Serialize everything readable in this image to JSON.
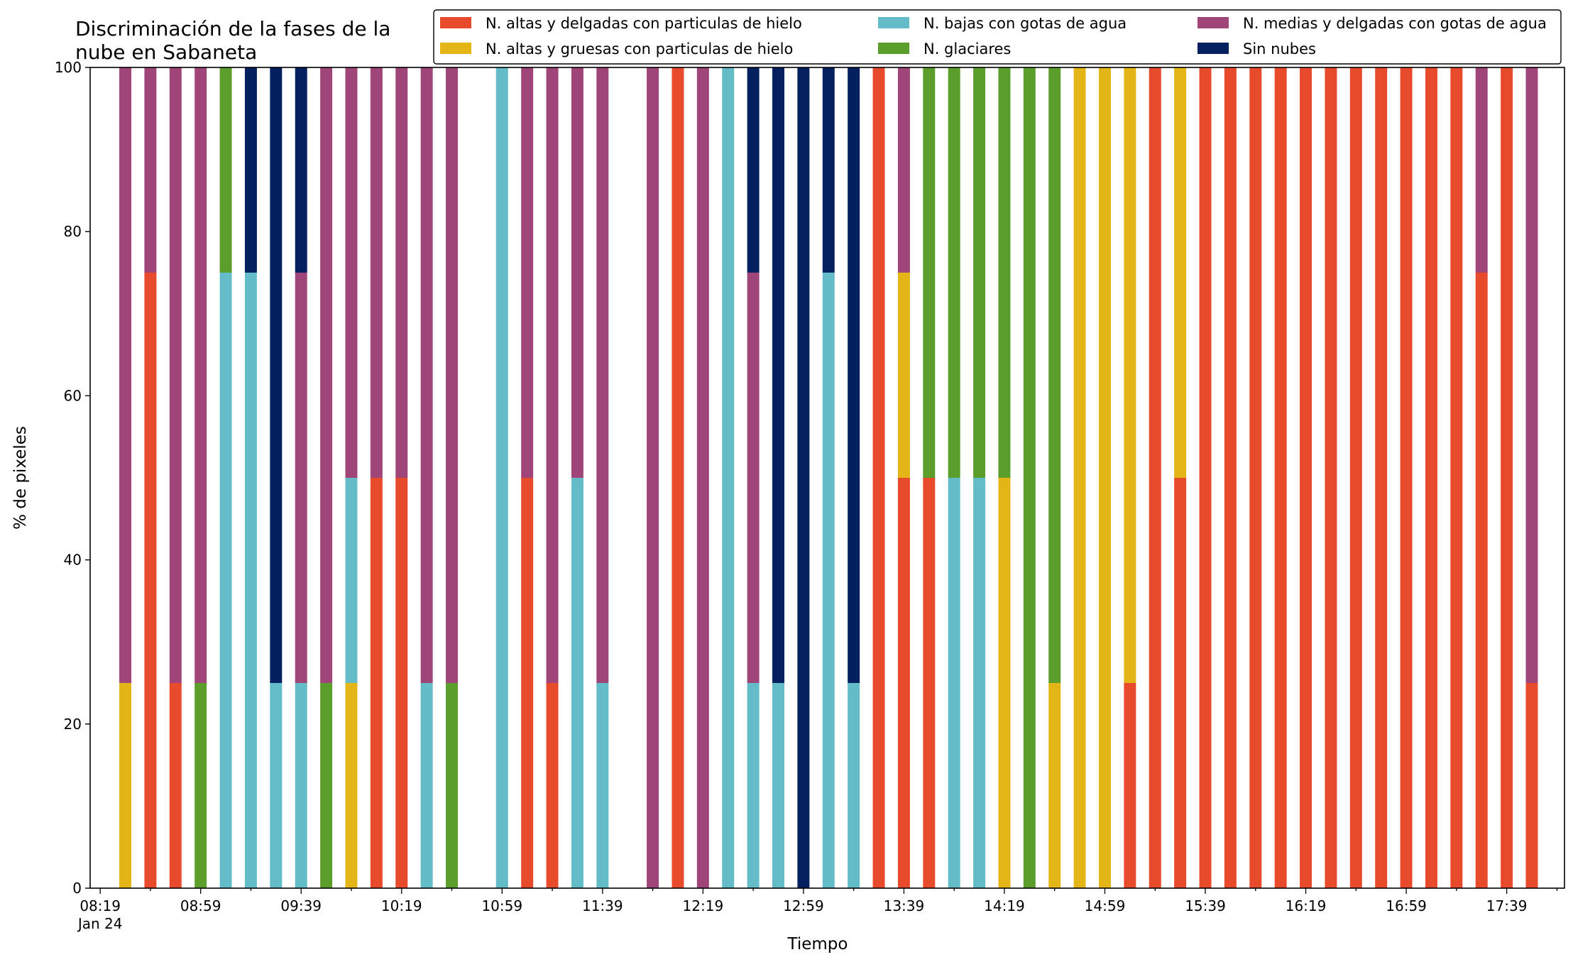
{
  "chart_data": {
    "type": "bar",
    "stacked": true,
    "title": "Discriminación de la fases de la\nnube en Sabaneta",
    "xlabel": "Tiempo",
    "ylabel": "% de pixeles",
    "ylim": [
      0,
      100
    ],
    "yticks": [
      0,
      20,
      40,
      60,
      80,
      100
    ],
    "xlim_minutes_after_08_19": [
      -4,
      583
    ],
    "bar_step_minutes": 10,
    "bar_width_minutes": 4.8,
    "xticks": [
      {
        "label": "08:19",
        "sub": "Jan 24",
        "minute": 0
      },
      {
        "label": "08:59",
        "minute": 40
      },
      {
        "label": "09:39",
        "minute": 80
      },
      {
        "label": "10:19",
        "minute": 120
      },
      {
        "label": "10:59",
        "minute": 160
      },
      {
        "label": "11:39",
        "minute": 200
      },
      {
        "label": "12:19",
        "minute": 240
      },
      {
        "label": "12:59",
        "minute": 280
      },
      {
        "label": "13:39",
        "minute": 320
      },
      {
        "label": "14:19",
        "minute": 360
      },
      {
        "label": "14:59",
        "minute": 400
      },
      {
        "label": "15:39",
        "minute": 440
      },
      {
        "label": "16:19",
        "minute": 480
      },
      {
        "label": "16:59",
        "minute": 520
      },
      {
        "label": "17:39",
        "minute": 560
      }
    ],
    "legend_position": "top-right",
    "series": [
      {
        "name": "N. altas y delgadas con particulas de hielo",
        "color": "#e84a2c"
      },
      {
        "name": "N. altas y gruesas con particulas de hielo",
        "color": "#e3b516"
      },
      {
        "name": "N. bajas con gotas de agua",
        "color": "#63bcc8"
      },
      {
        "name": "N. glaciares",
        "color": "#5b9e2c"
      },
      {
        "name": "N. medias y delgadas con gotas de agua",
        "color": "#a0457a"
      },
      {
        "name": "Sin nubes",
        "color": "#04205f"
      }
    ],
    "bars": [
      {
        "slot": 1,
        "values": [
          0,
          25,
          0,
          0,
          75,
          0
        ]
      },
      {
        "slot": 2,
        "values": [
          75,
          0,
          0,
          0,
          25,
          0
        ]
      },
      {
        "slot": 3,
        "values": [
          25,
          0,
          0,
          0,
          75,
          0
        ]
      },
      {
        "slot": 4,
        "values": [
          0,
          0,
          0,
          25,
          75,
          0
        ]
      },
      {
        "slot": 5,
        "values": [
          0,
          0,
          75,
          25,
          0,
          0
        ]
      },
      {
        "slot": 6,
        "values": [
          0,
          0,
          75,
          0,
          0,
          25
        ]
      },
      {
        "slot": 7,
        "values": [
          0,
          0,
          25,
          0,
          0,
          75
        ]
      },
      {
        "slot": 8,
        "values": [
          0,
          0,
          25,
          0,
          50,
          25
        ]
      },
      {
        "slot": 9,
        "values": [
          0,
          0,
          0,
          25,
          75,
          0
        ]
      },
      {
        "slot": 10,
        "values": [
          0,
          25,
          25,
          0,
          50,
          0
        ]
      },
      {
        "slot": 11,
        "values": [
          50,
          0,
          0,
          0,
          50,
          0
        ]
      },
      {
        "slot": 12,
        "values": [
          50,
          0,
          0,
          0,
          50,
          0
        ]
      },
      {
        "slot": 13,
        "values": [
          0,
          0,
          25,
          0,
          75,
          0
        ]
      },
      {
        "slot": 14,
        "values": [
          0,
          0,
          0,
          25,
          75,
          0
        ]
      },
      {
        "slot": 16,
        "values": [
          0,
          0,
          100,
          0,
          0,
          0
        ]
      },
      {
        "slot": 17,
        "values": [
          50,
          0,
          0,
          0,
          50,
          0
        ]
      },
      {
        "slot": 18,
        "values": [
          25,
          0,
          0,
          0,
          75,
          0
        ]
      },
      {
        "slot": 19,
        "values": [
          0,
          0,
          50,
          0,
          50,
          0
        ]
      },
      {
        "slot": 20,
        "values": [
          0,
          0,
          25,
          0,
          75,
          0
        ]
      },
      {
        "slot": 22,
        "values": [
          0,
          0,
          0,
          0,
          100,
          0
        ]
      },
      {
        "slot": 23,
        "values": [
          100,
          0,
          0,
          0,
          0,
          0
        ]
      },
      {
        "slot": 24,
        "values": [
          0,
          0,
          0,
          0,
          100,
          0
        ]
      },
      {
        "slot": 25,
        "values": [
          0,
          0,
          100,
          0,
          0,
          0
        ]
      },
      {
        "slot": 26,
        "values": [
          0,
          0,
          25,
          0,
          50,
          25
        ]
      },
      {
        "slot": 27,
        "values": [
          0,
          0,
          25,
          0,
          0,
          75
        ]
      },
      {
        "slot": 28,
        "values": [
          0,
          0,
          0,
          0,
          0,
          100
        ]
      },
      {
        "slot": 29,
        "values": [
          0,
          0,
          75,
          0,
          0,
          25
        ]
      },
      {
        "slot": 30,
        "values": [
          0,
          0,
          25,
          0,
          0,
          75
        ]
      },
      {
        "slot": 31,
        "values": [
          100,
          0,
          0,
          0,
          0,
          0
        ]
      },
      {
        "slot": 32,
        "values": [
          50,
          25,
          0,
          0,
          25,
          0
        ]
      },
      {
        "slot": 33,
        "values": [
          50,
          0,
          0,
          50,
          0,
          0
        ]
      },
      {
        "slot": 34,
        "values": [
          0,
          0,
          50,
          50,
          0,
          0
        ]
      },
      {
        "slot": 35,
        "values": [
          0,
          0,
          50,
          50,
          0,
          0
        ]
      },
      {
        "slot": 36,
        "values": [
          0,
          50,
          0,
          50,
          0,
          0
        ]
      },
      {
        "slot": 37,
        "values": [
          0,
          0,
          0,
          100,
          0,
          0
        ]
      },
      {
        "slot": 38,
        "values": [
          0,
          25,
          0,
          75,
          0,
          0
        ]
      },
      {
        "slot": 39,
        "values": [
          0,
          100,
          0,
          0,
          0,
          0
        ]
      },
      {
        "slot": 40,
        "values": [
          0,
          100,
          0,
          0,
          0,
          0
        ]
      },
      {
        "slot": 41,
        "values": [
          25,
          75,
          0,
          0,
          0,
          0
        ]
      },
      {
        "slot": 42,
        "values": [
          100,
          0,
          0,
          0,
          0,
          0
        ]
      },
      {
        "slot": 43,
        "values": [
          50,
          50,
          0,
          0,
          0,
          0
        ]
      },
      {
        "slot": 44,
        "values": [
          100,
          0,
          0,
          0,
          0,
          0
        ]
      },
      {
        "slot": 45,
        "values": [
          100,
          0,
          0,
          0,
          0,
          0
        ]
      },
      {
        "slot": 46,
        "values": [
          100,
          0,
          0,
          0,
          0,
          0
        ]
      },
      {
        "slot": 47,
        "values": [
          100,
          0,
          0,
          0,
          0,
          0
        ]
      },
      {
        "slot": 48,
        "values": [
          100,
          0,
          0,
          0,
          0,
          0
        ]
      },
      {
        "slot": 49,
        "values": [
          100,
          0,
          0,
          0,
          0,
          0
        ]
      },
      {
        "slot": 50,
        "values": [
          100,
          0,
          0,
          0,
          0,
          0
        ]
      },
      {
        "slot": 51,
        "values": [
          100,
          0,
          0,
          0,
          0,
          0
        ]
      },
      {
        "slot": 52,
        "values": [
          100,
          0,
          0,
          0,
          0,
          0
        ]
      },
      {
        "slot": 53,
        "values": [
          100,
          0,
          0,
          0,
          0,
          0
        ]
      },
      {
        "slot": 54,
        "values": [
          100,
          0,
          0,
          0,
          0,
          0
        ]
      },
      {
        "slot": 55,
        "values": [
          75,
          0,
          0,
          0,
          25,
          0
        ]
      },
      {
        "slot": 56,
        "values": [
          100,
          0,
          0,
          0,
          0,
          0
        ]
      },
      {
        "slot": 57,
        "values": [
          25,
          0,
          0,
          0,
          75,
          0
        ]
      }
    ]
  }
}
